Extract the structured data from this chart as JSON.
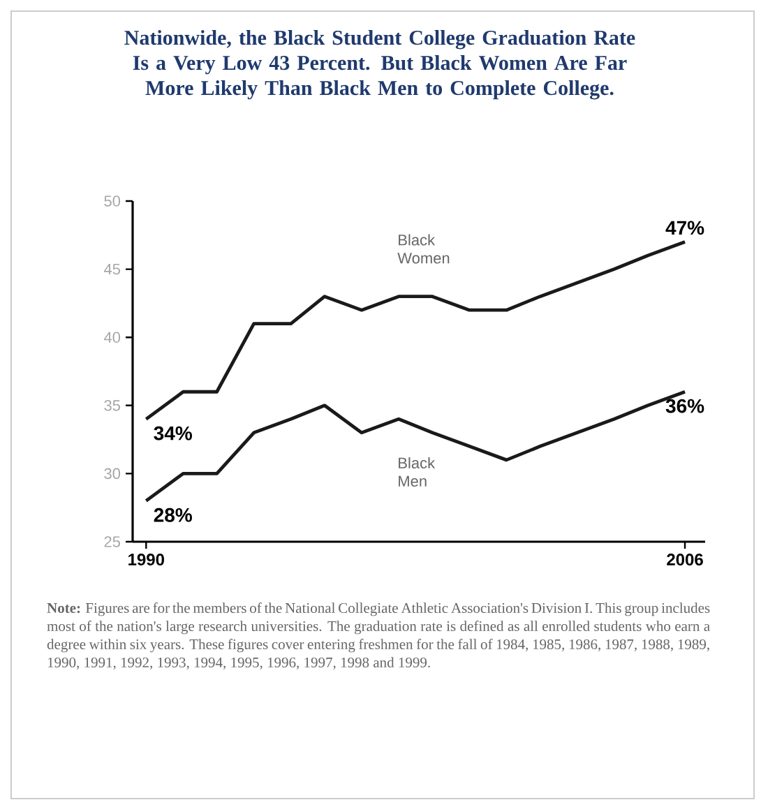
{
  "chart_data": {
    "type": "line",
    "title": "Nationwide, the Black Student College Graduation Rate Is a Very Low 43 Percent. But Black Women Are Far More Likely Than Black Men to Complete College.",
    "x": [
      1990,
      1991.1,
      1992.1,
      1993.2,
      1994.3,
      1995.3,
      1996.4,
      1997.5,
      1998.5,
      1999.6,
      2000.7,
      2001.7,
      2002.8,
      2003.9,
      2004.9,
      2006
    ],
    "series": [
      {
        "name": "Black Women",
        "color": "#1a1a1a",
        "values": [
          34,
          36,
          36,
          41,
          41,
          43,
          42,
          43,
          43,
          42,
          42,
          43,
          44,
          45,
          46,
          47
        ],
        "value_labels": [
          "34%",
          null,
          null,
          null,
          null,
          null,
          null,
          null,
          null,
          null,
          null,
          null,
          null,
          null,
          null,
          "47%"
        ]
      },
      {
        "name": "Black Men",
        "color": "#1a1a1a",
        "values": [
          28,
          30,
          30,
          33,
          34,
          35,
          33,
          34,
          33,
          32,
          31,
          32,
          33,
          34,
          35,
          36
        ],
        "value_labels": [
          "28%",
          null,
          null,
          null,
          null,
          null,
          null,
          null,
          null,
          null,
          null,
          null,
          null,
          null,
          null,
          "36%"
        ]
      }
    ],
    "xlim": [
      1989.6,
      2006.6
    ],
    "xticks": [
      1990,
      2006
    ],
    "ylim": [
      25,
      50
    ],
    "yticks": [
      25,
      30,
      35,
      40,
      45,
      50
    ],
    "grid": false,
    "legend": false,
    "marker": "none",
    "line_style": "solid",
    "annotations": [
      "**Note:** Figures are for the members of the National Collegiate Athletic Association's Division I. This group includes most of the nation's large research universities. The graduation rate is defined as all enrolled students who earn a degree within six years. These figures cover entering freshmen for the fall of 1984, 1985, 1986, 1987, 1988, 1989, 1990, 1991, 1992, 1993, 1994, 1995, 1996, 1997, 1998 and 1999."
    ]
  }
}
